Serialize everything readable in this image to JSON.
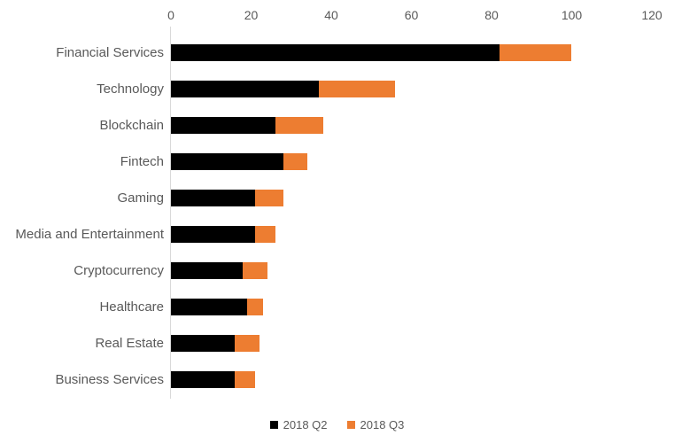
{
  "chart_data": {
    "type": "bar",
    "orientation": "horizontal",
    "stacked": true,
    "title": "",
    "xlabel": "",
    "ylabel": "",
    "categories": [
      "Financial Services",
      "Technology",
      "Blockchain",
      "Fintech",
      "Gaming",
      "Media and Entertainment",
      "Cryptocurrency",
      "Healthcare",
      "Real Estate",
      "Business Services"
    ],
    "series": [
      {
        "name": "2018 Q2",
        "color": "#000000",
        "values": [
          82,
          37,
          26,
          28,
          21,
          21,
          18,
          19,
          16,
          16
        ]
      },
      {
        "name": "2018 Q3",
        "color": "#ED7D31",
        "values": [
          18,
          19,
          12,
          6,
          7,
          5,
          6,
          4,
          6,
          5
        ]
      }
    ],
    "xlim": [
      0,
      120
    ],
    "x_ticks": [
      0,
      20,
      40,
      60,
      80,
      100,
      120
    ],
    "x_ticks_position": "top",
    "legend_position": "bottom",
    "grid": false,
    "axis_line_color": "#D9D9D9",
    "text_color": "#595959",
    "background_color": "#FFFFFF"
  }
}
